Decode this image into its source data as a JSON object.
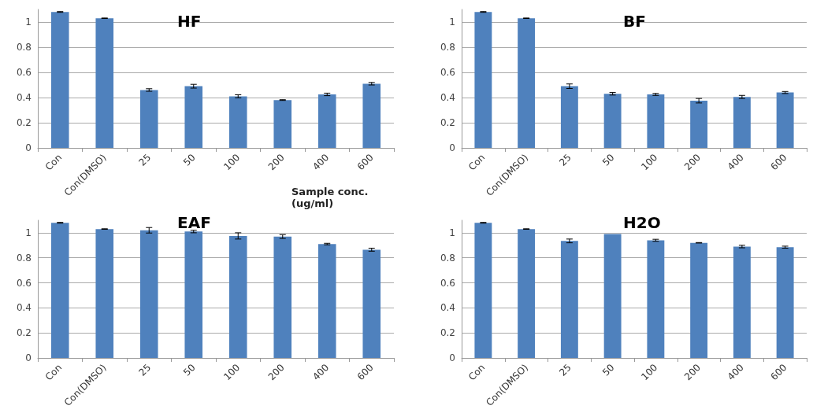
{
  "chart_data": [
    {
      "type": "bar",
      "title": "HF",
      "xlabel": "Sample conc.(ug/ml)",
      "categories": [
        "Con",
        "Con(DMSO)",
        "25",
        "50",
        "100",
        "200",
        "400",
        "600"
      ],
      "values": [
        1.08,
        1.03,
        0.46,
        0.49,
        0.41,
        0.38,
        0.425,
        0.51
      ],
      "errors": [
        0.003,
        0.002,
        0.01,
        0.015,
        0.012,
        0.003,
        0.01,
        0.01
      ],
      "color": "#4f81bd",
      "ylim": [
        0,
        1.1
      ],
      "yticks": [
        0,
        0.2,
        0.4,
        0.6,
        0.8,
        1
      ],
      "grid": "y"
    },
    {
      "type": "bar",
      "title": "BF",
      "categories": [
        "Con",
        "Con(DMSO)",
        "25",
        "50",
        "100",
        "200",
        "400",
        "600"
      ],
      "values": [
        1.08,
        1.03,
        0.49,
        0.43,
        0.425,
        0.375,
        0.405,
        0.44
      ],
      "errors": [
        0.003,
        0.002,
        0.018,
        0.01,
        0.008,
        0.018,
        0.012,
        0.008
      ],
      "color": "#4f81bd",
      "ylim": [
        0,
        1.1
      ],
      "yticks": [
        0,
        0.2,
        0.4,
        0.6,
        0.8,
        1
      ],
      "grid": "y"
    },
    {
      "type": "bar",
      "title": "EAF",
      "categories": [
        "Con",
        "Con(DMSO)",
        "25",
        "50",
        "100",
        "200",
        "400",
        "600"
      ],
      "values": [
        1.08,
        1.03,
        1.02,
        1.01,
        0.975,
        0.97,
        0.91,
        0.865
      ],
      "errors": [
        0.003,
        0.002,
        0.022,
        0.01,
        0.025,
        0.015,
        0.006,
        0.012
      ],
      "color": "#4f81bd",
      "ylim": [
        0,
        1.1
      ],
      "yticks": [
        0,
        0.2,
        0.4,
        0.6,
        0.8,
        1
      ],
      "grid": "y"
    },
    {
      "type": "bar",
      "title": "H2O",
      "categories": [
        "Con",
        "Con(DMSO)",
        "25",
        "50",
        "100",
        "200",
        "400",
        "600"
      ],
      "values": [
        1.08,
        1.03,
        0.935,
        0.99,
        0.94,
        0.92,
        0.89,
        0.885
      ],
      "errors": [
        0.003,
        0.002,
        0.015,
        null,
        0.008,
        0.002,
        0.01,
        0.008
      ],
      "color": "#4f81bd",
      "ylim": [
        0,
        1.1
      ],
      "yticks": [
        0,
        0.2,
        0.4,
        0.6,
        0.8,
        1
      ],
      "grid": "y"
    }
  ]
}
